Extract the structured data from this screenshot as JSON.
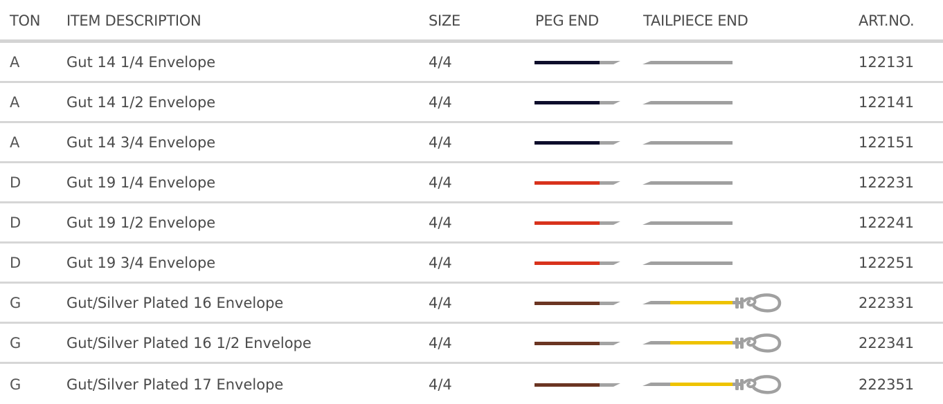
{
  "header": {
    "ton": "TON",
    "description": "ITEM DESCRIPTION",
    "size": "SIZE",
    "peg_end": "PEG END",
    "tailpiece_end": "TAILPIECE END",
    "art_no": "ART.NO."
  },
  "colors": {
    "peg_a": "#0d0d2b",
    "peg_d": "#d8321c",
    "peg_g": "#6b3522",
    "tail_gray": "#a0a0a0",
    "tail_gold": "#eec300",
    "divider": "#d6d6d6"
  },
  "rows": [
    {
      "ton": "A",
      "description": "Gut 14 1/4 Envelope",
      "size": "4/4",
      "peg_color": "#0d0d2b",
      "tail_type": "plain",
      "art_no": "122131"
    },
    {
      "ton": "A",
      "description": "Gut 14 1/2 Envelope",
      "size": "4/4",
      "peg_color": "#0d0d2b",
      "tail_type": "plain",
      "art_no": "122141"
    },
    {
      "ton": "A",
      "description": "Gut 14 3/4 Envelope",
      "size": "4/4",
      "peg_color": "#0d0d2b",
      "tail_type": "plain",
      "art_no": "122151"
    },
    {
      "ton": "D",
      "description": "Gut 19 1/4 Envelope",
      "size": "4/4",
      "peg_color": "#d8321c",
      "tail_type": "plain",
      "art_no": "122231"
    },
    {
      "ton": "D",
      "description": "Gut 19 1/2 Envelope",
      "size": "4/4",
      "peg_color": "#d8321c",
      "tail_type": "plain",
      "art_no": "122241"
    },
    {
      "ton": "D",
      "description": "Gut 19 3/4 Envelope",
      "size": "4/4",
      "peg_color": "#d8321c",
      "tail_type": "plain",
      "art_no": "122251"
    },
    {
      "ton": "G",
      "description": "Gut/Silver Plated 16 Envelope",
      "size": "4/4",
      "peg_color": "#6b3522",
      "tail_type": "loop",
      "art_no": "222331"
    },
    {
      "ton": "G",
      "description": "Gut/Silver Plated 16 1/2 Envelope",
      "size": "4/4",
      "peg_color": "#6b3522",
      "tail_type": "loop",
      "art_no": "222341"
    },
    {
      "ton": "G",
      "description": "Gut/Silver Plated 17 Envelope",
      "size": "4/4",
      "peg_color": "#6b3522",
      "tail_type": "loop",
      "art_no": "222351"
    }
  ]
}
